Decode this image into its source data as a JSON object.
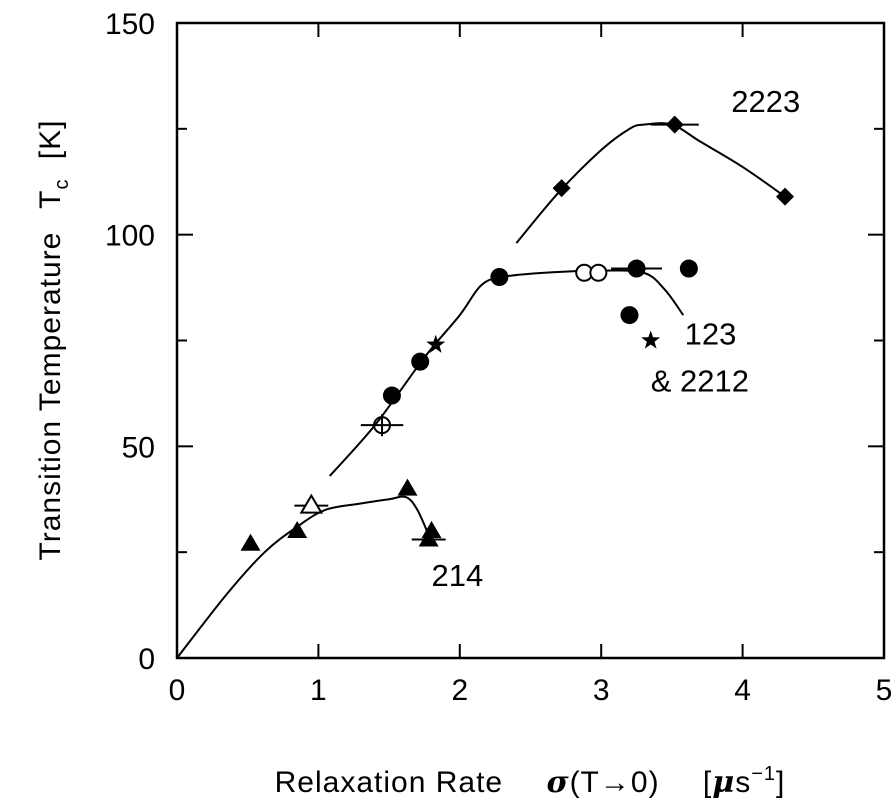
{
  "chart_data": {
    "type": "scatter",
    "xlabel": {
      "main": "Relaxation Rate",
      "sigma": "σ",
      "arg": "(T→0)",
      "unit_open": "[",
      "unit_mu": "μ",
      "unit_s": "s",
      "unit_exp": "−1",
      "unit_close": "]"
    },
    "ylabel": {
      "main": "Transition Temperature",
      "T": "T",
      "sub": "c",
      "unit": "[K]"
    },
    "xlim": [
      0,
      5
    ],
    "ylim": [
      0,
      150
    ],
    "x_ticks": [
      0,
      1,
      2,
      3,
      4,
      5
    ],
    "y_ticks": [
      0,
      50,
      100,
      150
    ],
    "grid": false,
    "series": [
      {
        "name": "2223",
        "points": [
          {
            "x": 2.72,
            "y": 111,
            "marker": "diamond-filled"
          },
          {
            "x": 3.52,
            "y": 126,
            "marker": "diamond-filled",
            "xerr": 0.17
          },
          {
            "x": 4.3,
            "y": 109,
            "marker": "diamond-filled"
          }
        ]
      },
      {
        "name": "123",
        "points": [
          {
            "x": 1.52,
            "y": 62,
            "marker": "circle-filled"
          },
          {
            "x": 1.72,
            "y": 70,
            "marker": "circle-filled"
          },
          {
            "x": 2.28,
            "y": 90,
            "marker": "circle-filled"
          },
          {
            "x": 3.25,
            "y": 92,
            "marker": "circle-filled",
            "xerr": 0.18
          },
          {
            "x": 3.62,
            "y": 92,
            "marker": "circle-filled"
          },
          {
            "x": 3.2,
            "y": 81,
            "marker": "circle-filled"
          },
          {
            "x": 1.45,
            "y": 55,
            "marker": "circle-open-cross",
            "xerr": 0.15
          },
          {
            "x": 2.88,
            "y": 91,
            "marker": "circle-open"
          },
          {
            "x": 2.98,
            "y": 91,
            "marker": "circle-open"
          }
        ]
      },
      {
        "name": "2212",
        "points": [
          {
            "x": 1.83,
            "y": 74,
            "marker": "star"
          },
          {
            "x": 3.35,
            "y": 75,
            "marker": "star"
          }
        ]
      },
      {
        "name": "214",
        "points": [
          {
            "x": 0.52,
            "y": 27,
            "marker": "triangle-filled"
          },
          {
            "x": 0.85,
            "y": 30,
            "marker": "triangle-filled"
          },
          {
            "x": 0.95,
            "y": 36,
            "marker": "triangle-open",
            "xerr": 0.12
          },
          {
            "x": 1.63,
            "y": 40,
            "marker": "triangle-filled"
          },
          {
            "x": 1.78,
            "y": 28,
            "marker": "triangle-filled",
            "xerr": 0.12
          },
          {
            "x": 1.8,
            "y": 30,
            "marker": "triangle-filled"
          }
        ]
      }
    ],
    "curves": [
      {
        "name": "214-curve",
        "x": [
          0,
          0.35,
          0.62,
          0.85,
          1.05,
          1.3,
          1.5,
          1.62,
          1.7,
          1.78
        ],
        "y": [
          0,
          15,
          25,
          31,
          35,
          36.5,
          37.5,
          38,
          35,
          29
        ]
      },
      {
        "name": "123-curve",
        "x": [
          1.08,
          1.4,
          1.75,
          2.0,
          2.15,
          2.3,
          2.6,
          3.0,
          3.3,
          3.45,
          3.58
        ],
        "y": [
          43,
          55,
          71,
          81,
          88,
          90,
          91,
          91.5,
          91,
          87,
          81
        ]
      },
      {
        "name": "2223-curve",
        "x": [
          2.4,
          2.7,
          3.0,
          3.2,
          3.3,
          3.5,
          3.7,
          4.0,
          4.3
        ],
        "y": [
          98,
          110,
          120,
          125,
          126,
          126,
          122,
          116,
          109
        ]
      }
    ],
    "annotations": [
      {
        "text": "2223",
        "x": 3.92,
        "y": 129
      },
      {
        "text": "123",
        "x": 3.59,
        "y": 74
      },
      {
        "text": "& 2212",
        "x": 3.35,
        "y": 63
      },
      {
        "text": "214",
        "x": 1.8,
        "y": 17
      }
    ]
  }
}
